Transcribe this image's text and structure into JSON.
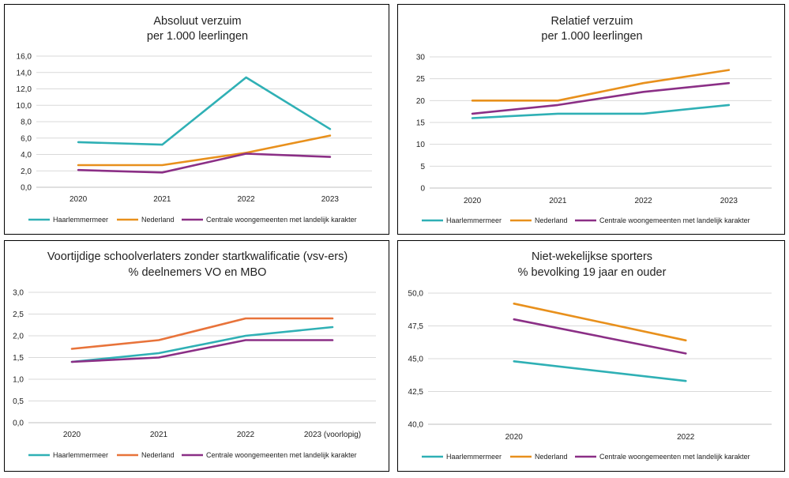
{
  "chart_data": [
    {
      "type": "line",
      "title": "Absoluut verzuim",
      "subtitle": "per 1.000 leerlingen",
      "categories": [
        "2020",
        "2021",
        "2022",
        "2023"
      ],
      "ylim": [
        0,
        16
      ],
      "yticks": [
        "0,0",
        "2,0",
        "4,0",
        "6,0",
        "8,0",
        "10,0",
        "12,0",
        "14,0",
        "16,0"
      ],
      "grid": true,
      "legend": "bottom",
      "series": [
        {
          "name": "Haarlemmermeer",
          "color": "#2fb0b5",
          "values": [
            5.5,
            5.2,
            13.4,
            7.1
          ]
        },
        {
          "name": "Nederland",
          "color": "#e8901c",
          "values": [
            2.7,
            2.7,
            4.2,
            6.3
          ]
        },
        {
          "name": "Centrale woongemeenten met landelijk karakter",
          "color": "#8b2f86",
          "values": [
            2.1,
            1.8,
            4.1,
            3.7
          ]
        }
      ]
    },
    {
      "type": "line",
      "title": "Relatief verzuim",
      "subtitle": "per 1.000 leerlingen",
      "categories": [
        "2020",
        "2021",
        "2022",
        "2023"
      ],
      "ylim": [
        0,
        30
      ],
      "yticks": [
        "0",
        "5",
        "10",
        "15",
        "20",
        "25",
        "30"
      ],
      "grid": true,
      "legend": "bottom",
      "series": [
        {
          "name": "Haarlemmermeer",
          "color": "#2fb0b5",
          "values": [
            16,
            17,
            17,
            19
          ]
        },
        {
          "name": "Nederland",
          "color": "#e8901c",
          "values": [
            20,
            20,
            24,
            27
          ]
        },
        {
          "name": "Centrale woongemeenten met landelijk karakter",
          "color": "#8b2f86",
          "values": [
            17,
            19,
            22,
            24
          ]
        }
      ]
    },
    {
      "type": "line",
      "title": "Voortijdige schoolverlaters zonder startkwalificatie (vsv-ers)",
      "subtitle": "% deelnemers VO en MBO",
      "categories": [
        "2020",
        "2021",
        "2022",
        "2023 (voorlopig)"
      ],
      "ylim": [
        0,
        3
      ],
      "yticks": [
        "0,0",
        "0,5",
        "1,0",
        "1,5",
        "2,0",
        "2,5",
        "3,0"
      ],
      "grid": true,
      "legend": "bottom",
      "series": [
        {
          "name": "Haarlemmermeer",
          "color": "#2fb0b5",
          "values": [
            1.4,
            1.6,
            2.0,
            2.2
          ]
        },
        {
          "name": "Nederland",
          "color": "#e8733a",
          "values": [
            1.7,
            1.9,
            2.4,
            2.4
          ]
        },
        {
          "name": "Centrale woongemeenten met landelijk karakter",
          "color": "#8b2f86",
          "values": [
            1.4,
            1.5,
            1.9,
            1.9
          ]
        }
      ]
    },
    {
      "type": "line",
      "title": "Niet-wekelijkse sporters",
      "subtitle": "% bevolking 19 jaar en ouder",
      "categories": [
        "2020",
        "2022"
      ],
      "ylim": [
        40,
        50
      ],
      "yticks": [
        "40,0",
        "42,5",
        "45,0",
        "47,5",
        "50,0"
      ],
      "grid": true,
      "legend": "bottom",
      "series": [
        {
          "name": "Haarlemmermeer",
          "color": "#2fb0b5",
          "values": [
            44.8,
            43.3
          ]
        },
        {
          "name": "Nederland",
          "color": "#e8901c",
          "values": [
            49.2,
            46.4
          ]
        },
        {
          "name": "Centrale woongemeenten met landelijk karakter",
          "color": "#8b2f86",
          "values": [
            48.0,
            45.4
          ]
        }
      ]
    }
  ]
}
